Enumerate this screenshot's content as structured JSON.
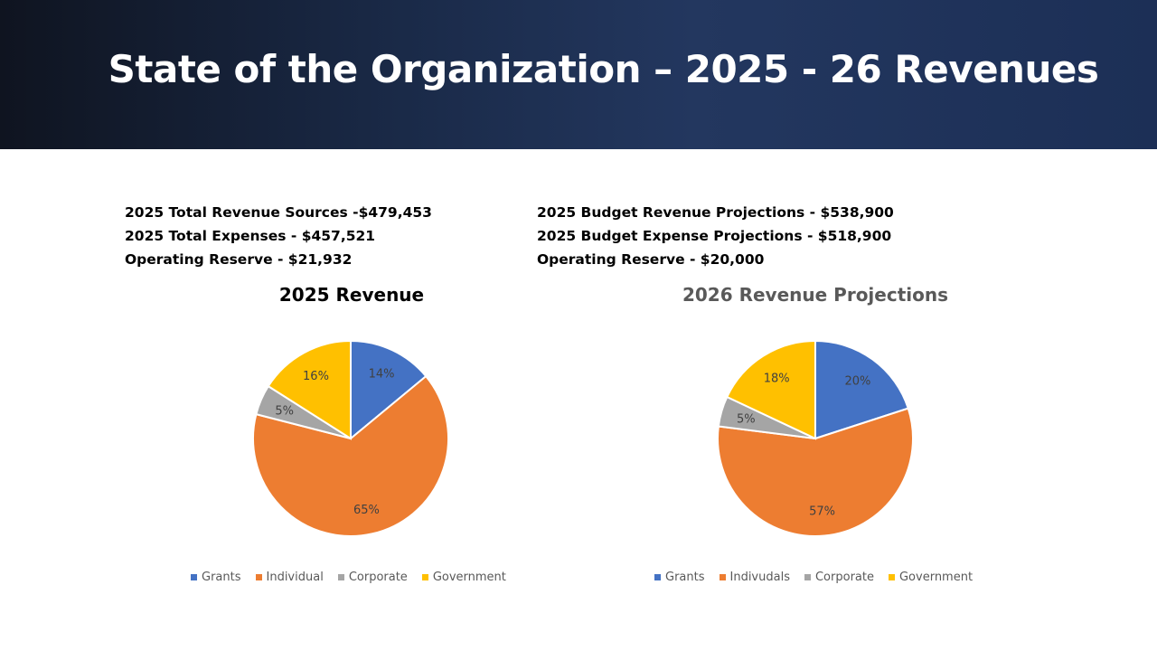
{
  "slide": {
    "title": "State of the Organization – 2025 - 26 Revenues"
  },
  "stats_left": [
    "2025 Total Revenue Sources -$479,453",
    "2025 Total Expenses - $457,521",
    "Operating Reserve - $21,932"
  ],
  "stats_right": [
    "2025 Budget Revenue Projections - $538,900",
    "2025 Budget Expense Projections - $518,900",
    "Operating Reserve - $20,000"
  ],
  "colors": {
    "grants": "#4472C4",
    "individual": "#ED7D31",
    "corporate": "#A5A5A5",
    "government": "#FFC000",
    "title_dark": "#000000",
    "title_gray": "#595959"
  },
  "chart_data": [
    {
      "type": "pie",
      "title": "2025 Revenue",
      "labels": [
        "Grants",
        "Individual",
        "Corporate",
        "Government"
      ],
      "values": [
        14,
        65,
        5,
        16
      ],
      "data_labels": [
        "14%",
        "65%",
        "5%",
        "16%"
      ],
      "legend": "bottom"
    },
    {
      "type": "pie",
      "title": "2026 Revenue Projections",
      "labels": [
        "Grants",
        "Indivudals",
        "Corporate",
        "Government"
      ],
      "values": [
        20,
        57,
        5,
        18
      ],
      "data_labels": [
        "20%",
        "57%",
        "5%",
        "18%"
      ],
      "legend": "bottom"
    }
  ]
}
